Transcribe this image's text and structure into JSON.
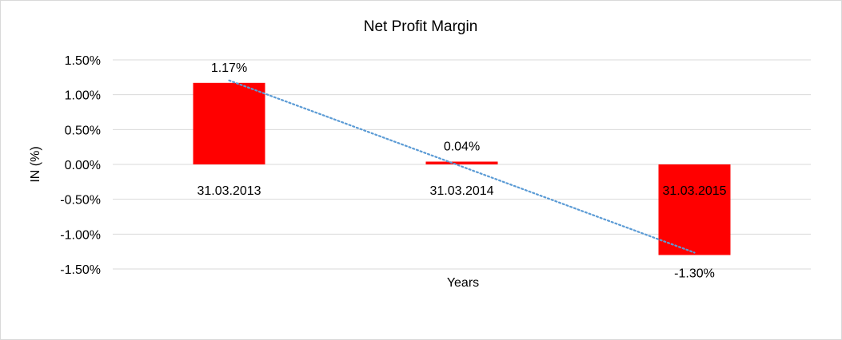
{
  "chart_data": {
    "type": "bar",
    "title": "Net Profit Margin",
    "xlabel": "Years",
    "ylabel": "IN (%)",
    "categories": [
      "31.03.2013",
      "31.03.2014",
      "31.03.2015"
    ],
    "series": [
      {
        "values": [
          1.17,
          0.04,
          -1.3
        ],
        "color": "#ff0000"
      }
    ],
    "data_labels": [
      "1.17%",
      "0.04%",
      "-1.30%"
    ],
    "ylim": [
      -1.5,
      1.5
    ],
    "yticks": [
      1.5,
      1.0,
      0.5,
      0.0,
      -0.5,
      -1.0,
      -1.5
    ],
    "ytick_labels": [
      "1.50%",
      "1.00%",
      "0.50%",
      "0.00%",
      "-0.50%",
      "-1.00%",
      "-1.50%"
    ],
    "grid": true,
    "legend": "none",
    "trendline": {
      "type": "linear",
      "style": "dotted",
      "color": "#5b9bd5"
    }
  }
}
